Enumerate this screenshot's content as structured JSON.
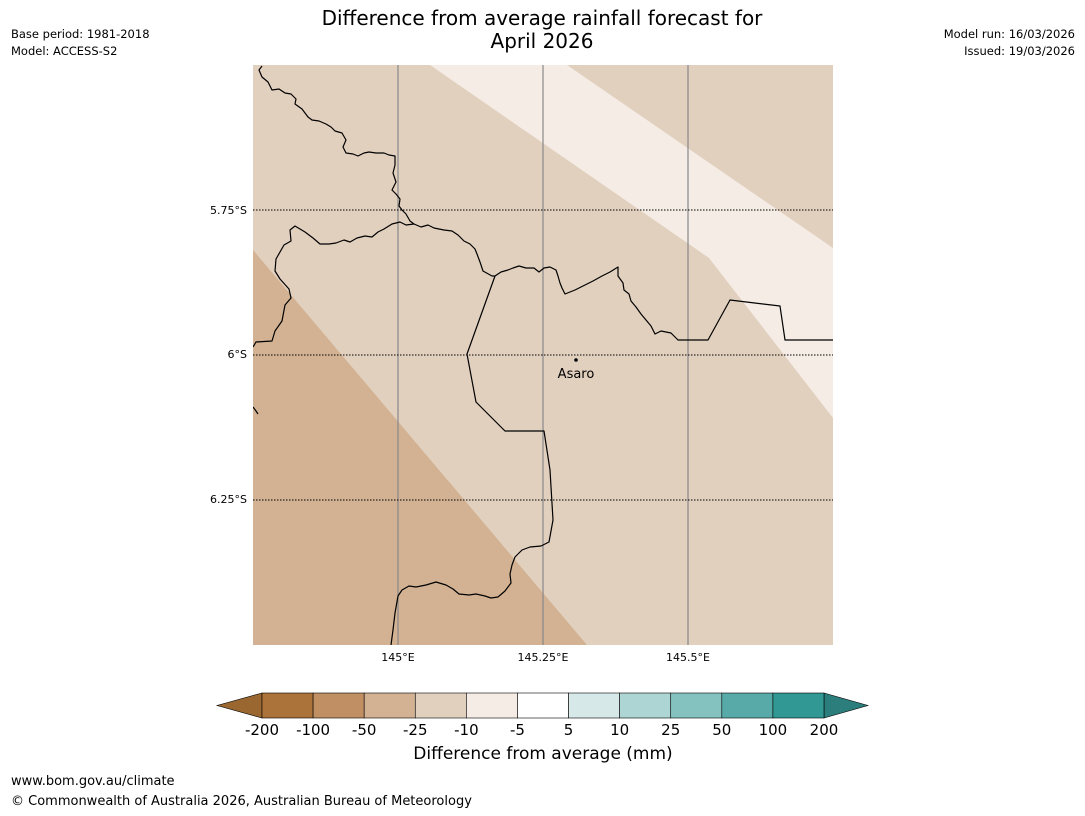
{
  "header": {
    "title_line1": "Difference from average rainfall forecast for",
    "title_line2": "April 2026",
    "base_period": "Base period: 1981-2018",
    "model": "Model: ACCESS-S2",
    "model_run": "Model run: 16/03/2026",
    "issued": "Issued: 19/03/2026"
  },
  "map": {
    "lat_labels": [
      "5.75°S",
      "6°S",
      "6.25°S"
    ],
    "lon_labels": [
      "145°E",
      "145.25°E",
      "145.5°E"
    ],
    "place": {
      "name": "Asaro"
    },
    "land_color": "#e2d0bf",
    "zones": [
      {
        "category": "-50 to -25",
        "color": "#d2b292"
      },
      {
        "category": "-10 to -5",
        "color": "#f4ece5"
      }
    ],
    "border_color": "#000000",
    "meridian_color": "#888888"
  },
  "colorbar": {
    "label": "Difference from average (mm)",
    "ticks": [
      "-200",
      "-100",
      "-50",
      "-25",
      "-10",
      "-5",
      "5",
      "10",
      "25",
      "50",
      "100",
      "200"
    ],
    "colors": [
      "#ab7339",
      "#c09064",
      "#d2b292",
      "#e2d0bf",
      "#f4ece5",
      "#ffffff",
      "#d6e8e8",
      "#acd5d4",
      "#84c2bf",
      "#58aaa8",
      "#319893"
    ],
    "low_extend_color": "#9a6731",
    "high_extend_color": "#2b7e7b"
  },
  "footer": {
    "url": "www.bom.gov.au/climate",
    "copyright": "© Commonwealth of Australia 2026, Australian Bureau of Meteorology"
  }
}
